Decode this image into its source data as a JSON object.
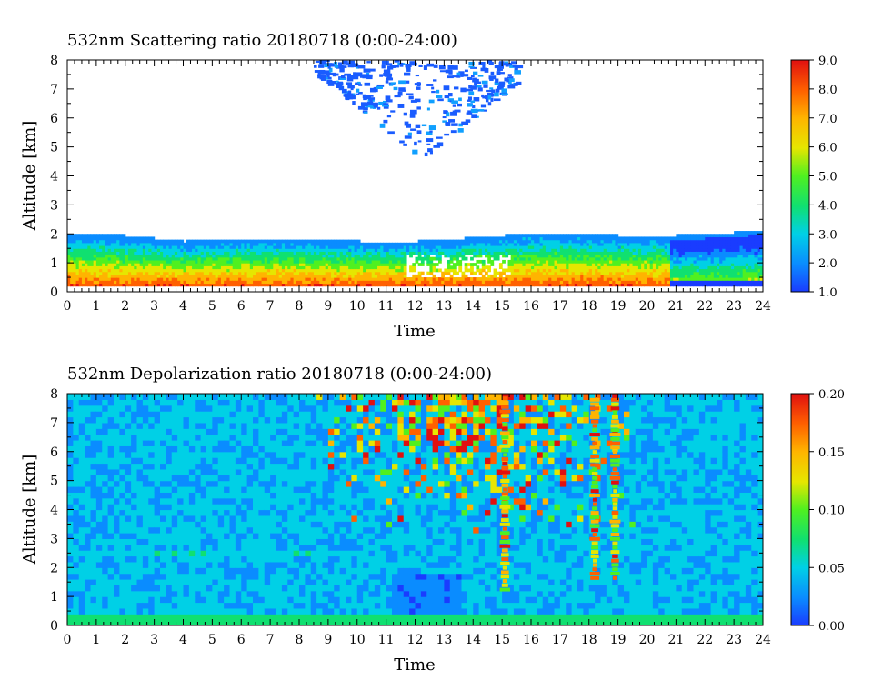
{
  "chart_data": [
    {
      "type": "heatmap",
      "title": "532nm Scattering ratio  20180718 (0:00-24:00)",
      "xlabel": "Time",
      "ylabel": "Altitude [km]",
      "xlim": [
        0,
        24
      ],
      "ylim": [
        0,
        8
      ],
      "x_ticks": [
        "0",
        "1",
        "2",
        "3",
        "4",
        "5",
        "6",
        "7",
        "8",
        "9",
        "10",
        "11",
        "12",
        "13",
        "14",
        "15",
        "16",
        "17",
        "18",
        "19",
        "20",
        "21",
        "22",
        "23",
        "24"
      ],
      "y_ticks": [
        "0",
        "1",
        "2",
        "3",
        "4",
        "5",
        "6",
        "7",
        "8"
      ],
      "colorbar": {
        "min": 1.0,
        "max": 9.0,
        "ticks": [
          "1.0",
          "2.0",
          "3.0",
          "4.0",
          "5.0",
          "6.0",
          "7.0",
          "8.0",
          "9.0"
        ]
      },
      "features": {
        "boundary_layer_top_km": [
          2.0,
          1.95,
          1.9,
          1.8,
          1.7,
          1.75,
          1.8,
          1.8,
          1.78,
          1.75,
          1.7,
          1.7,
          1.7,
          1.72,
          1.85,
          1.9,
          2.0,
          2.0,
          1.95,
          1.9,
          1.9,
          1.9,
          1.95,
          2.0,
          2.1
        ],
        "high_cloud_time_range": [
          8.5,
          15.5
        ],
        "high_cloud_altitude_range_km": [
          4.6,
          8.0
        ],
        "saturated_region": {
          "time": [
            11.6,
            15.2
          ],
          "altitude_km": [
            0.4,
            1.3
          ]
        }
      }
    },
    {
      "type": "heatmap",
      "title": "532nm Depolarization ratio  20180718 (0:00-24:00)",
      "xlabel": "Time",
      "ylabel": "Altitude [km]",
      "xlim": [
        0,
        24
      ],
      "ylim": [
        0,
        8
      ],
      "x_ticks": [
        "0",
        "1",
        "2",
        "3",
        "4",
        "5",
        "6",
        "7",
        "8",
        "9",
        "10",
        "11",
        "12",
        "13",
        "14",
        "15",
        "16",
        "17",
        "18",
        "19",
        "20",
        "21",
        "22",
        "23",
        "24"
      ],
      "y_ticks": [
        "0",
        "1",
        "2",
        "3",
        "4",
        "5",
        "6",
        "7",
        "8"
      ],
      "colorbar": {
        "min": 0.0,
        "max": 0.2,
        "ticks": [
          "0.00",
          "0.05",
          "0.10",
          "0.15",
          "0.20"
        ]
      },
      "features": {
        "dust_time_range": [
          8.5,
          19.5
        ],
        "plumes": [
          {
            "time": 15.1,
            "altitude_km": [
              1.3,
              8.0
            ]
          },
          {
            "time": 18.2,
            "altitude_km": [
              1.7,
              8.0
            ]
          },
          {
            "time": 18.9,
            "altitude_km": [
              1.7,
              8.0
            ]
          }
        ],
        "aerosol_layer_altitude_km": [
          2.2,
          2.5
        ]
      }
    }
  ],
  "colors": {
    "colormap": [
      "#1a3cff",
      "#0a8cff",
      "#00d0e6",
      "#10e070",
      "#50f020",
      "#e6e600",
      "#ffb400",
      "#ff6000",
      "#e01010"
    ]
  }
}
